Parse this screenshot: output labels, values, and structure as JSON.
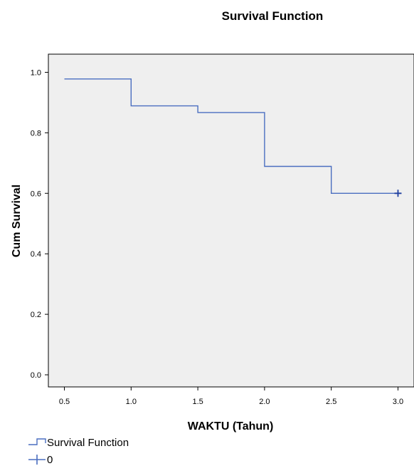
{
  "chart_data": {
    "type": "line",
    "title": "Survival Function",
    "xlabel": "WAKTU (Tahun)",
    "ylabel": "Cum Survival",
    "xlim": [
      0.38,
      3.12
    ],
    "ylim": [
      -0.04,
      1.06
    ],
    "xticks": [
      {
        "value": 0.5,
        "label": "0.5"
      },
      {
        "value": 1.0,
        "label": "1.0"
      },
      {
        "value": 1.5,
        "label": "1.5"
      },
      {
        "value": 2.0,
        "label": "2.0"
      },
      {
        "value": 2.5,
        "label": "2.5"
      },
      {
        "value": 3.0,
        "label": "3.0"
      }
    ],
    "yticks": [
      {
        "value": 0.0,
        "label": "0.0"
      },
      {
        "value": 0.2,
        "label": "0.2"
      },
      {
        "value": 0.4,
        "label": "0.4"
      },
      {
        "value": 0.6,
        "label": "0.6"
      },
      {
        "value": 0.8,
        "label": "0.8"
      },
      {
        "value": 1.0,
        "label": "1.0"
      }
    ],
    "grid": false,
    "legend_position": "bottom-left",
    "plot_background": "#efefef",
    "series": [
      {
        "name": "Survival Function",
        "kind": "step",
        "color": "#4a6ec0",
        "points": [
          {
            "x": 0.5,
            "y": 0.978
          },
          {
            "x": 1.0,
            "y": 0.889
          },
          {
            "x": 1.5,
            "y": 0.867
          },
          {
            "x": 2.0,
            "y": 0.689
          },
          {
            "x": 2.5,
            "y": 0.6
          },
          {
            "x": 3.0,
            "y": 0.6
          }
        ]
      },
      {
        "name": "0",
        "kind": "censored",
        "color": "#1f3f9f",
        "points": [
          {
            "x": 3.0,
            "y": 0.6
          }
        ]
      }
    ]
  }
}
